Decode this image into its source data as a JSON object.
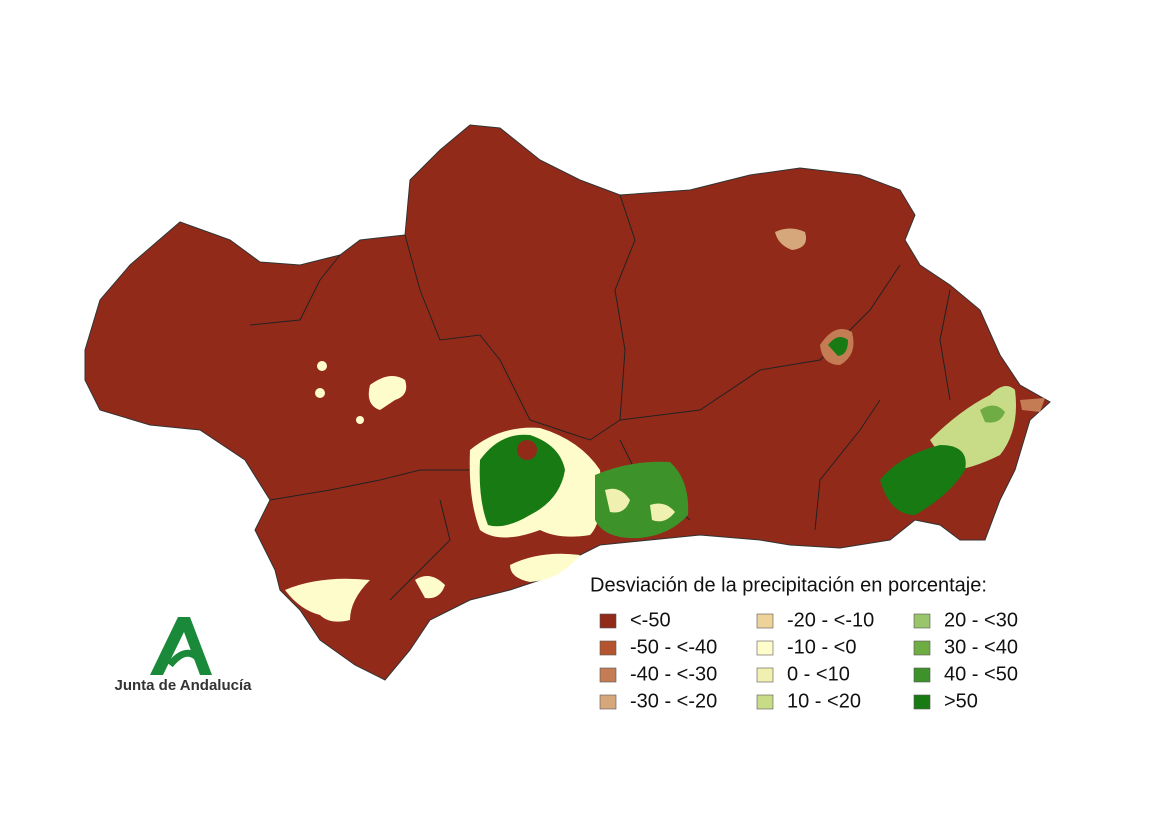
{
  "legend": {
    "title": "Desviación de la precipitación en porcentaje:",
    "items": [
      {
        "label": "<-50",
        "color": "#922a1a"
      },
      {
        "label": "-50 - <-40",
        "color": "#b5552f"
      },
      {
        "label": "-40 - <-30",
        "color": "#c47c55"
      },
      {
        "label": "-30 - <-20",
        "color": "#d6a77a"
      },
      {
        "label": "-20 - <-10",
        "color": "#edd39a"
      },
      {
        "label": "-10 - <0",
        "color": "#fffccc"
      },
      {
        "label": "0 - <10",
        "color": "#f0f0b0"
      },
      {
        "label": "10 - <20",
        "color": "#c8dc88"
      },
      {
        "label": "20 - <30",
        "color": "#99c66a"
      },
      {
        "label": "30 - <40",
        "color": "#6fad44"
      },
      {
        "label": "40 - <50",
        "color": "#3d922a"
      },
      {
        "label": ">50",
        "color": "#177a12"
      }
    ]
  },
  "logo": {
    "text": "Junta de Andalucía"
  }
}
